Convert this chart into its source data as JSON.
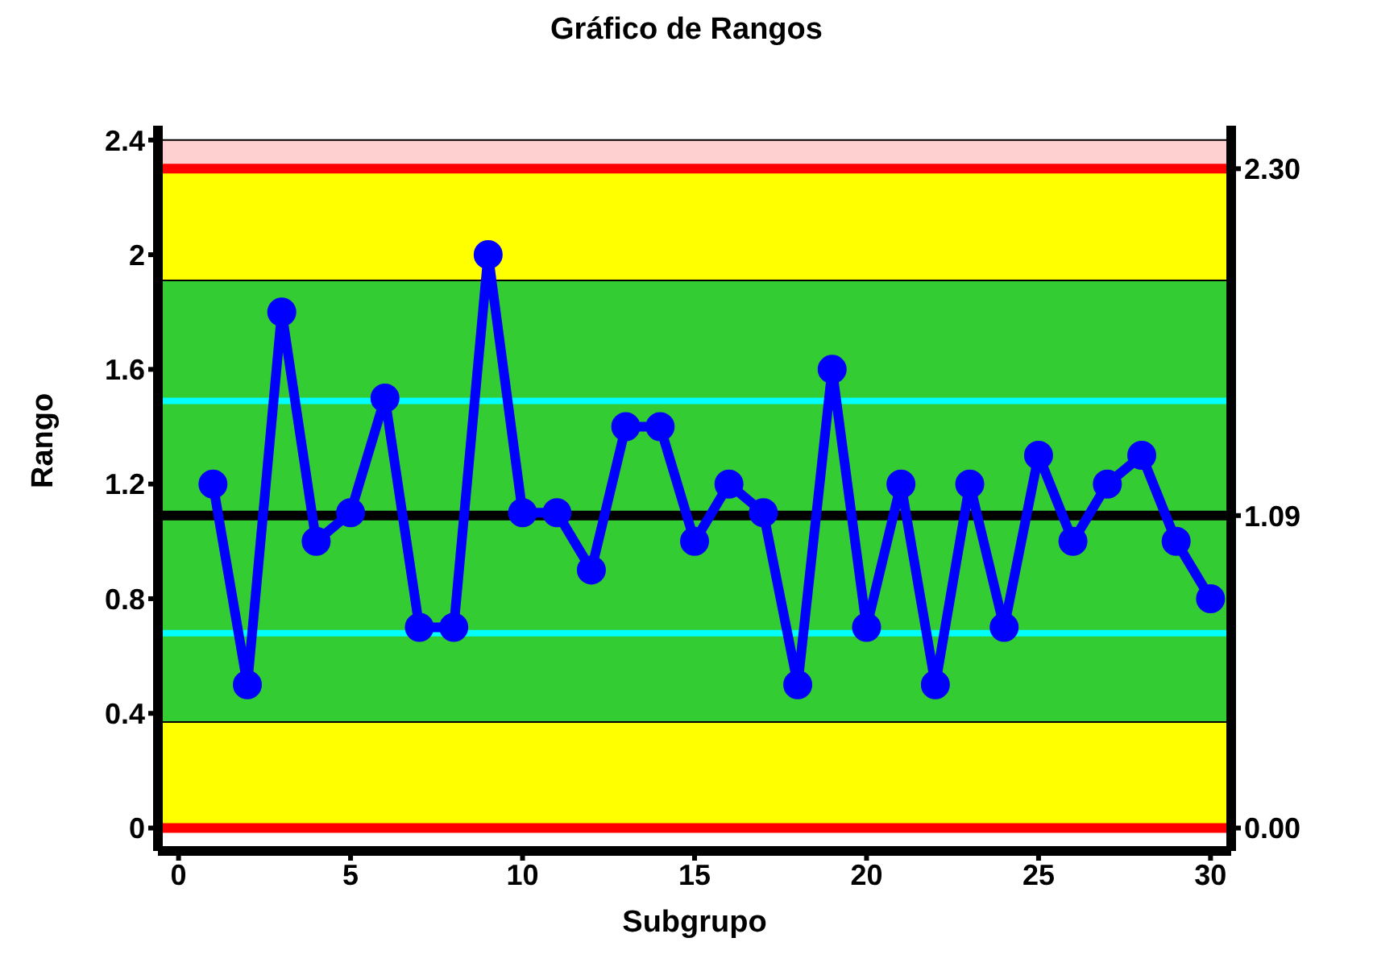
{
  "chart_data": {
    "type": "line",
    "title": "Gráfico de Rangos",
    "xlabel": "Subgrupo",
    "ylabel": "Rango",
    "x": [
      1,
      2,
      3,
      4,
      5,
      6,
      7,
      8,
      9,
      10,
      11,
      12,
      13,
      14,
      15,
      16,
      17,
      18,
      19,
      20,
      21,
      22,
      23,
      24,
      25,
      26,
      27,
      28,
      29,
      30
    ],
    "series": [
      {
        "color": "#0000ff",
        "values": [
          1.2,
          0.5,
          1.8,
          1.0,
          1.1,
          1.5,
          0.7,
          0.7,
          2.0,
          1.1,
          1.1,
          0.9,
          1.4,
          1.4,
          1.0,
          1.2,
          1.1,
          0.5,
          1.6,
          0.7,
          1.2,
          0.5,
          1.2,
          0.7,
          1.3,
          1.0,
          1.2,
          1.3,
          1.0,
          0.8
        ]
      }
    ],
    "marker": "circle",
    "line_style": "solid",
    "grid": false,
    "legend": false,
    "xlim": [
      -0.6,
      30.6
    ],
    "xticks": [
      0,
      5,
      10,
      15,
      20,
      25,
      30
    ],
    "ylim": [
      -0.08,
      2.45
    ],
    "yticks": [
      0,
      0.4,
      0.8,
      1.2,
      1.6,
      2,
      2.4
    ],
    "y2lim": [
      -0.08,
      2.45
    ],
    "y2ticks": [
      {
        "value": 0,
        "label": "0.00"
      },
      {
        "value": 1.09,
        "label": "1.09"
      },
      {
        "value": 2.3,
        "label": "2.30"
      }
    ],
    "bands": [
      {
        "axis": "y",
        "from": 0,
        "to": 2.3,
        "color": "#ffff00"
      },
      {
        "axis": "y",
        "from": 0.37,
        "to": 1.91,
        "color": "#33cc33"
      },
      {
        "axis": "y",
        "from": 2.3,
        "to": 2.4,
        "color": "#ffd0d0"
      }
    ],
    "ref_lines": [
      {
        "axis": "y",
        "value": 2.3,
        "color": "#ff0000"
      },
      {
        "axis": "y",
        "value": 0,
        "color": "#ff0000"
      },
      {
        "axis": "y",
        "value": 1.09,
        "color": "#000000"
      },
      {
        "axis": "y",
        "value": 1.49,
        "color": "#00ffff"
      },
      {
        "axis": "y",
        "value": 0.68,
        "color": "#00ffff"
      }
    ]
  }
}
